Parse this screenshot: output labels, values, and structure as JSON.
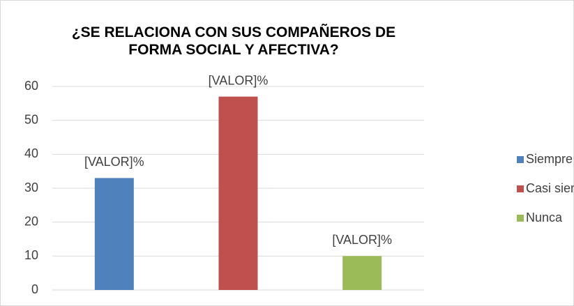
{
  "chart_data": {
    "type": "bar",
    "title": "¿SE RELACIONA CON SUS COMPAÑEROS DE FORMA SOCIAL Y AFECTIVA?",
    "categories": [
      null
    ],
    "series": [
      {
        "name": "Siempre",
        "color": "#4f81bd",
        "values": [
          33
        ],
        "value_labels": [
          "[VALOR]%"
        ]
      },
      {
        "name": "Casi siempre",
        "color": "#c0504d",
        "values": [
          57
        ],
        "value_labels": [
          "[VALOR]%"
        ]
      },
      {
        "name": "Nunca",
        "color": "#9bbb59",
        "values": [
          10
        ],
        "value_labels": [
          "[VALOR]%"
        ]
      }
    ],
    "ylim": [
      0,
      60
    ],
    "yticks": [
      0,
      10,
      20,
      30,
      40,
      50,
      60
    ],
    "grid": true,
    "legend": "right"
  }
}
